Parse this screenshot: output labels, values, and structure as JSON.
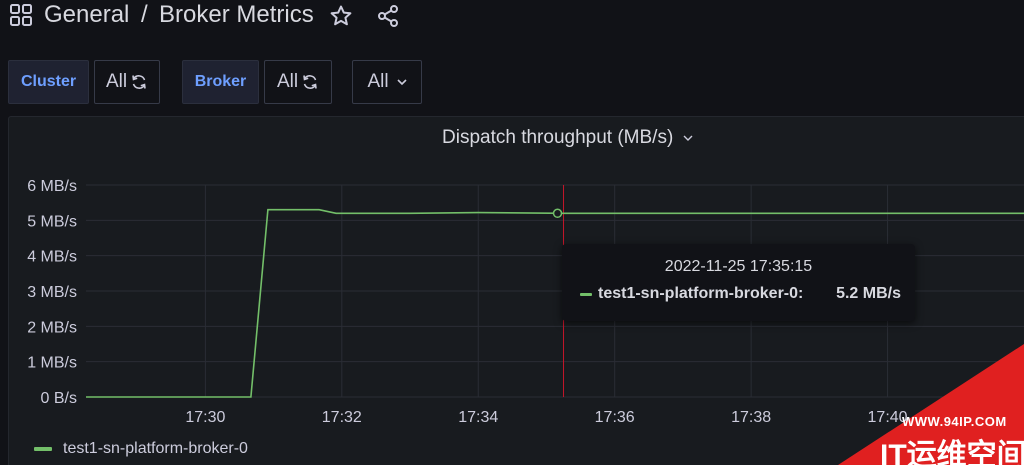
{
  "header": {
    "folder": "General",
    "separator": "/",
    "dashboard_title": "Broker Metrics"
  },
  "variables": {
    "cluster_label": "Cluster",
    "cluster_value": "All",
    "broker_label": "Broker",
    "broker_value": "All",
    "extra_value": "All"
  },
  "panel": {
    "title": "Dispatch throughput (MB/s)"
  },
  "chart_data": {
    "type": "line",
    "title": "Dispatch throughput (MB/s)",
    "ylabel": "",
    "xlabel": "",
    "ylim": [
      0,
      6
    ],
    "y_ticks": [
      "0 B/s",
      "1 MB/s",
      "2 MB/s",
      "3 MB/s",
      "4 MB/s",
      "5 MB/s",
      "6 MB/s"
    ],
    "x_ticks": [
      "17:30",
      "17:32",
      "17:34",
      "17:36",
      "17:38",
      "17:40"
    ],
    "x_range": [
      "17:28:15",
      "17:42:00"
    ],
    "grid": true,
    "legend_position": "bottom-left",
    "series": [
      {
        "name": "test1-sn-platform-broker-0",
        "color": "#73bf69",
        "x": [
          "17:28:15",
          "17:30:40",
          "17:30:55",
          "17:31:40",
          "17:31:55",
          "17:33:00",
          "17:34:00",
          "17:35:15",
          "17:36:00",
          "17:38:00",
          "17:40:00",
          "17:42:00"
        ],
        "values": [
          0,
          0,
          5.3,
          5.3,
          5.2,
          5.2,
          5.22,
          5.2,
          5.2,
          5.2,
          5.2,
          5.2
        ]
      }
    ],
    "cursor_time": "17:35:15"
  },
  "tooltip": {
    "time": "2022-11-25 17:35:15",
    "series_name": "test1-sn-platform-broker-0:",
    "value": "5.2 MB/s"
  },
  "legend": {
    "items": [
      "test1-sn-platform-broker-0"
    ]
  },
  "watermark": {
    "url": "WWW.94IP.COM",
    "title": "IT运维空间"
  },
  "colors": {
    "background": "#111217",
    "panel": "#181b1f",
    "series": "#73bf69",
    "cursor": "#c4162a",
    "watermark": "#e02020"
  }
}
